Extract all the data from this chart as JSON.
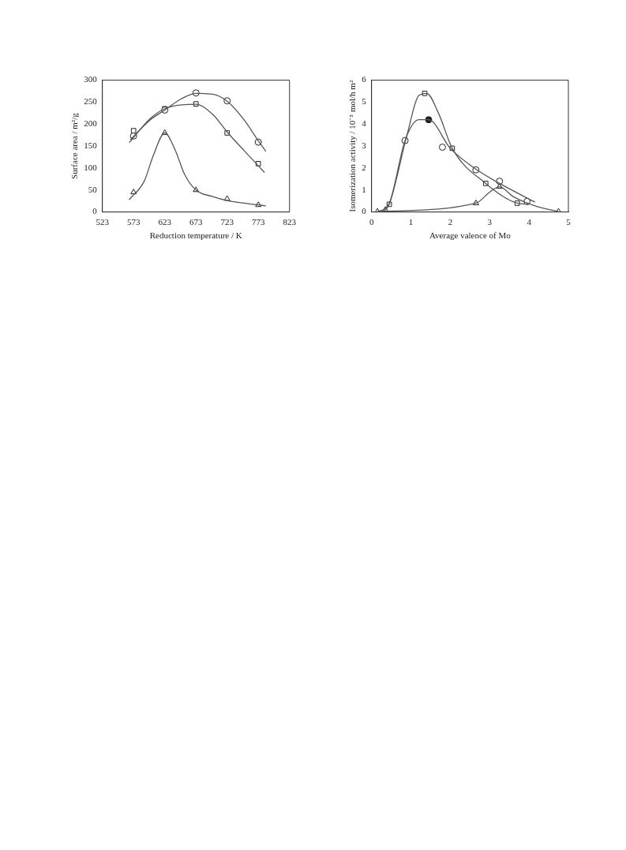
{
  "chart_data": [
    {
      "type": "scatter",
      "xlabel": "Reduction temperature / K",
      "ylabel": "Surface area / m²/g",
      "xlim": [
        523,
        823
      ],
      "xticks": [
        523,
        573,
        623,
        673,
        723,
        773,
        823
      ],
      "ylim": [
        0,
        300
      ],
      "yticks": [
        0,
        50,
        100,
        150,
        200,
        250,
        300
      ],
      "grid": false,
      "legend": false,
      "series": [
        {
          "type": "line",
          "marker": "none",
          "color": "#555555",
          "x": [
            568,
            600,
            623,
            650,
            673,
            700,
            723,
            750,
            773,
            785
          ],
          "values": [
            165,
            210,
            232,
            258,
            270,
            268,
            252,
            210,
            162,
            138
          ]
        },
        {
          "type": "line",
          "marker": "none",
          "color": "#555555",
          "x": [
            566,
            600,
            623,
            650,
            673,
            700,
            723,
            750,
            773,
            783
          ],
          "values": [
            158,
            213,
            235,
            244,
            245,
            222,
            182,
            140,
            105,
            90
          ]
        },
        {
          "type": "line",
          "marker": "none",
          "color": "#555555",
          "x": [
            566,
            590,
            605,
            623,
            640,
            655,
            673,
            700,
            723,
            750,
            773,
            785
          ],
          "values": [
            28,
            70,
            130,
            180,
            140,
            85,
            50,
            35,
            26,
            20,
            16,
            14
          ]
        },
        {
          "type": "scatter",
          "marker": "circle",
          "color": "#222222",
          "x": [
            573,
            623,
            673,
            723,
            773
          ],
          "values": [
            173,
            232,
            271,
            253,
            159
          ]
        },
        {
          "type": "scatter",
          "marker": "square",
          "color": "#222222",
          "x": [
            573,
            623,
            673,
            723,
            773
          ],
          "values": [
            185,
            235,
            246,
            180,
            110
          ]
        },
        {
          "type": "scatter",
          "marker": "triangle",
          "color": "#222222",
          "x": [
            573,
            623,
            673,
            723,
            773
          ],
          "values": [
            45,
            180,
            50,
            30,
            16
          ]
        }
      ]
    },
    {
      "type": "scatter",
      "xlabel": "Average valence of Mo",
      "ylabel": "Isomerization activity / 10⁻⁵ mol/h m²",
      "xlim": [
        0,
        5
      ],
      "xticks": [
        0,
        1,
        2,
        3,
        4,
        5
      ],
      "ylim": [
        0,
        6
      ],
      "yticks": [
        0,
        1,
        2,
        3,
        4,
        5,
        6
      ],
      "grid": false,
      "legend": false,
      "series": [
        {
          "type": "line",
          "marker": "none",
          "color": "#555555",
          "x": [
            0.15,
            0.45,
            0.85,
            1.2,
            1.45,
            2.0,
            2.65,
            3.25,
            4.15
          ],
          "values": [
            0,
            0.4,
            3.25,
            4.2,
            4.2,
            2.9,
            1.95,
            1.3,
            0.45
          ]
        },
        {
          "type": "line",
          "marker": "none",
          "color": "#555555",
          "x": [
            0.3,
            0.45,
            0.9,
            1.2,
            1.4,
            1.7,
            2.05,
            2.9,
            3.7,
            4.0
          ],
          "values": [
            0,
            0.35,
            3.5,
            5.3,
            5.4,
            4.5,
            2.9,
            1.3,
            0.4,
            0.35
          ]
        },
        {
          "type": "line",
          "marker": "none",
          "color": "#555555",
          "x": [
            0.15,
            2.65,
            3.0,
            3.25,
            3.6,
            4.2,
            4.75
          ],
          "values": [
            0.02,
            0.4,
            0.9,
            1.15,
            0.7,
            0.25,
            0.02
          ]
        },
        {
          "type": "scatter",
          "marker": "circle",
          "color": "#222222",
          "colors": [
            "#ffffff",
            "#222222",
            "#ffffff",
            "#ffffff",
            "#ffffff",
            "#ffffff"
          ],
          "x": [
            0.85,
            1.45,
            1.8,
            2.65,
            3.25,
            3.95
          ],
          "values": [
            3.25,
            4.2,
            2.95,
            1.92,
            1.4,
            0.48
          ]
        },
        {
          "type": "scatter",
          "marker": "square",
          "color": "#222222",
          "x": [
            0.45,
            1.35,
            2.05,
            2.9,
            3.7
          ],
          "values": [
            0.35,
            5.4,
            2.9,
            1.3,
            0.4
          ]
        },
        {
          "type": "scatter",
          "marker": "triangle",
          "color": "#222222",
          "x": [
            0.15,
            0.35,
            2.65,
            3.25,
            4.75
          ],
          "values": [
            0.02,
            0.1,
            0.4,
            1.15,
            0.02
          ]
        }
      ]
    }
  ]
}
